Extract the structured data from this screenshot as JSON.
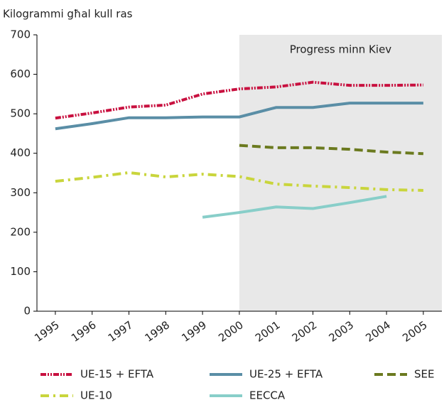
{
  "chart_data": {
    "type": "line",
    "y_axis_label": "Kilogrammi għal kull ras",
    "annotation": "Progress minn Kiev",
    "shade_from": "2000",
    "categories": [
      "1995",
      "1996",
      "1997",
      "1998",
      "1999",
      "2000",
      "2001",
      "2002",
      "2003",
      "2004",
      "2005"
    ],
    "ylim": [
      0,
      700
    ],
    "yticks": [
      0,
      100,
      200,
      300,
      400,
      500,
      600,
      700
    ],
    "grid": false,
    "series": [
      {
        "name": "UE-15 + EFTA",
        "color": "#c8103f",
        "dash": "8,2,2,2,2,2",
        "values": [
          489,
          502,
          517,
          522,
          550,
          563,
          568,
          580,
          572,
          572,
          573
        ]
      },
      {
        "name": "UE-25 + EFTA",
        "color": "#5a8ea6",
        "dash": "none",
        "values": [
          462,
          475,
          490,
          490,
          492,
          492,
          516,
          516,
          527,
          527,
          527
        ]
      },
      {
        "name": "SEE",
        "color": "#6b7a1f",
        "dash": "12,6",
        "values": [
          null,
          null,
          null,
          null,
          null,
          420,
          414,
          414,
          410,
          403,
          399
        ]
      },
      {
        "name": "UE-10",
        "color": "#c9d53c",
        "dash": "12,6,3,6",
        "values": [
          329,
          339,
          351,
          340,
          347,
          341,
          322,
          317,
          313,
          308,
          306
        ]
      },
      {
        "name": "EECCA",
        "color": "#88cec9",
        "dash": "none",
        "values": [
          null,
          null,
          null,
          null,
          238,
          250,
          264,
          260,
          275,
          291,
          null
        ]
      }
    ]
  }
}
